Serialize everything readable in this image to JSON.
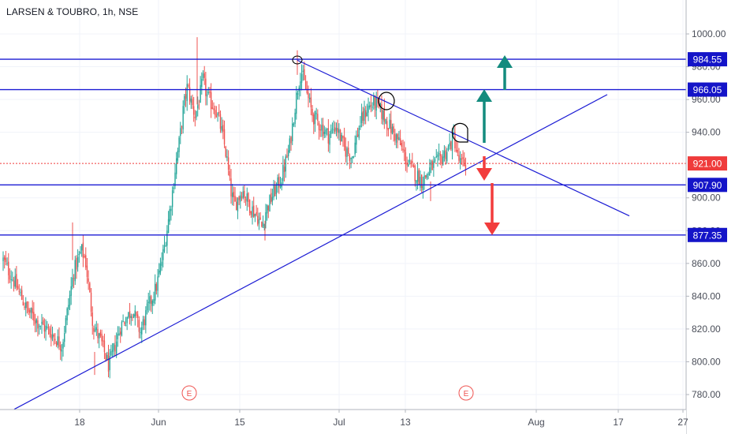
{
  "header": {
    "title": "LARSEN & TOUBRO, 1h, NSE"
  },
  "colors": {
    "up": "#26a69a",
    "down": "#ef5350",
    "line": "#1c1cd4",
    "label_bg": "#1414c8",
    "price_label_bg": "#ef3b3b",
    "grid": "#f0f3fa",
    "arrow_up": "#138b7e",
    "arrow_down": "#f23c3c"
  },
  "chart_data": {
    "type": "candlestick",
    "ylim": [
      770,
      1012
    ],
    "y_ticks": [
      "1000.00",
      "980.00",
      "960.00",
      "940.00",
      "900.00",
      "880.00",
      "860.00",
      "840.00",
      "820.00",
      "800.00",
      "780.00"
    ],
    "x_ticks": [
      "18",
      "Jun",
      "15",
      "Jul",
      "13",
      "Aug",
      "17",
      "27"
    ],
    "horizontal_levels": [
      {
        "label": "984.55",
        "value": 984.55
      },
      {
        "label": "966.05",
        "value": 966.05
      },
      {
        "label": "907.90",
        "value": 907.9
      },
      {
        "label": "877.35",
        "value": 877.35
      }
    ],
    "last_price": {
      "label": "921.00",
      "value": 921.0
    },
    "earnings_markers": [
      "E",
      "E"
    ],
    "trend_lines": [
      {
        "name": "descending resistance",
        "from": {
          "date": "2020-06-24",
          "price": 984
        },
        "to": {
          "date": "2020-08-19",
          "price": 889
        }
      },
      {
        "name": "ascending support",
        "from": {
          "date": "2020-05-12",
          "price": 771
        },
        "to": {
          "date": "2020-08-18",
          "price": 963
        }
      }
    ],
    "price_path": [
      [
        0,
        862
      ],
      [
        3,
        848
      ],
      [
        6,
        832
      ],
      [
        9,
        824
      ],
      [
        12,
        818
      ],
      [
        15,
        810
      ],
      [
        18,
        855
      ],
      [
        20,
        868
      ],
      [
        21,
        862
      ],
      [
        23,
        822
      ],
      [
        25,
        812
      ],
      [
        27,
        797
      ],
      [
        30,
        822
      ],
      [
        33,
        832
      ],
      [
        35,
        818
      ],
      [
        37,
        833
      ],
      [
        39,
        845
      ],
      [
        40,
        856
      ],
      [
        41,
        868
      ],
      [
        42,
        884
      ],
      [
        43,
        900
      ],
      [
        44,
        920
      ],
      [
        45,
        935
      ],
      [
        46,
        955
      ],
      [
        47,
        968
      ],
      [
        48,
        958
      ],
      [
        49,
        950
      ],
      [
        50,
        960
      ],
      [
        51,
        972
      ],
      [
        52,
        962
      ],
      [
        53,
        958
      ],
      [
        54,
        955
      ],
      [
        55,
        948
      ],
      [
        56,
        938
      ],
      [
        57,
        925
      ],
      [
        58,
        905
      ],
      [
        59,
        895
      ],
      [
        61,
        905
      ],
      [
        63,
        895
      ],
      [
        65,
        888
      ],
      [
        66,
        882
      ],
      [
        67,
        892
      ],
      [
        69,
        903
      ],
      [
        71,
        912
      ],
      [
        73,
        930
      ],
      [
        75,
        965
      ],
      [
        76,
        978
      ],
      [
        77,
        968
      ],
      [
        79,
        950
      ],
      [
        81,
        944
      ],
      [
        83,
        938
      ],
      [
        85,
        944
      ],
      [
        87,
        930
      ],
      [
        89,
        925
      ],
      [
        91,
        945
      ],
      [
        93,
        955
      ],
      [
        95,
        958
      ],
      [
        97,
        950
      ],
      [
        99,
        942
      ],
      [
        101,
        934
      ],
      [
        103,
        922
      ],
      [
        105,
        915
      ],
      [
        107,
        910
      ],
      [
        109,
        918
      ],
      [
        111,
        922
      ],
      [
        113,
        928
      ],
      [
        114,
        932
      ],
      [
        115,
        938
      ],
      [
        116,
        924
      ],
      [
        117,
        920
      ],
      [
        118,
        921
      ]
    ]
  }
}
